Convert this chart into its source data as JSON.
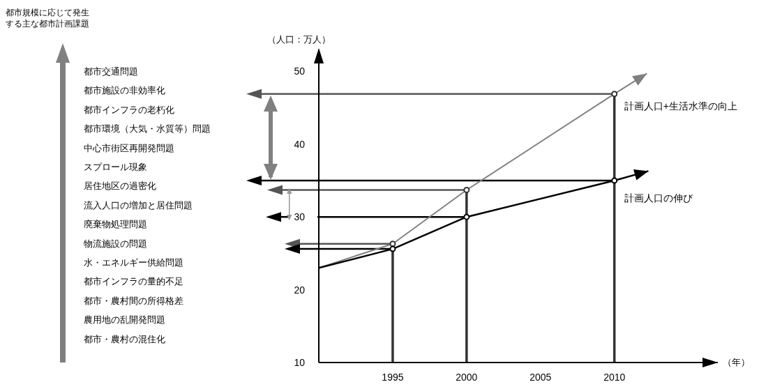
{
  "chart_data": {
    "type": "line",
    "ylabel": "（人口：万人）",
    "xlabel": "（年）",
    "xlim": [
      1990,
      2017
    ],
    "xticks": [
      1995,
      2000,
      2005,
      2010
    ],
    "ylim": [
      10,
      53
    ],
    "yticks": [
      10,
      20,
      30,
      40,
      50
    ],
    "series": [
      {
        "name": "計画人口+生活水準の向上",
        "color": "#808080",
        "x": [
          1990,
          1995,
          2000,
          2010,
          2012.2
        ],
        "values": [
          23,
          26.3,
          33.7,
          46.9,
          49.7
        ]
      },
      {
        "name": "計画人口の伸び",
        "color": "#000000",
        "x": [
          1990,
          1995,
          2000,
          2010,
          2012.3
        ],
        "values": [
          23,
          25.6,
          30,
          35,
          36.3
        ]
      }
    ],
    "ref_lines": [
      {
        "axis": "y",
        "value": 46.9,
        "color": "#555555"
      },
      {
        "axis": "y",
        "value": 35,
        "color": "#000000"
      },
      {
        "axis": "y",
        "value": 33.7,
        "color": "#555555"
      },
      {
        "axis": "y",
        "value": 30,
        "color": "#000000"
      },
      {
        "axis": "y",
        "value": 26.3,
        "color": "#555555"
      },
      {
        "axis": "y",
        "value": 25.6,
        "color": "#000000"
      },
      {
        "axis": "x",
        "value": 1995,
        "color": "#333333"
      },
      {
        "axis": "x",
        "value": 2000,
        "color": "#333333"
      },
      {
        "axis": "x",
        "value": 2010,
        "color": "#333333"
      }
    ],
    "annotations": [
      "都市規模に応じて発生する主な都市計画課題",
      "都市交通問題",
      "都市施設の非効率化",
      "都市インフラの老朽化",
      "都市環境（大気・水質等）問題",
      "中心市街区再開発問題",
      "スプロール現象",
      "居住地区の過密化",
      "流入人口の増加と居住問題",
      "廃棄物処理問題",
      "物流施設の問題",
      "水・エネルギー供給問題",
      "都市インフラの量的不足",
      "都市・農村間の所得格差",
      "農用地の乱開発問題",
      "都市・農村の混住化"
    ],
    "grid": false,
    "legend": false,
    "marker": "circle",
    "line_style": "solid"
  }
}
